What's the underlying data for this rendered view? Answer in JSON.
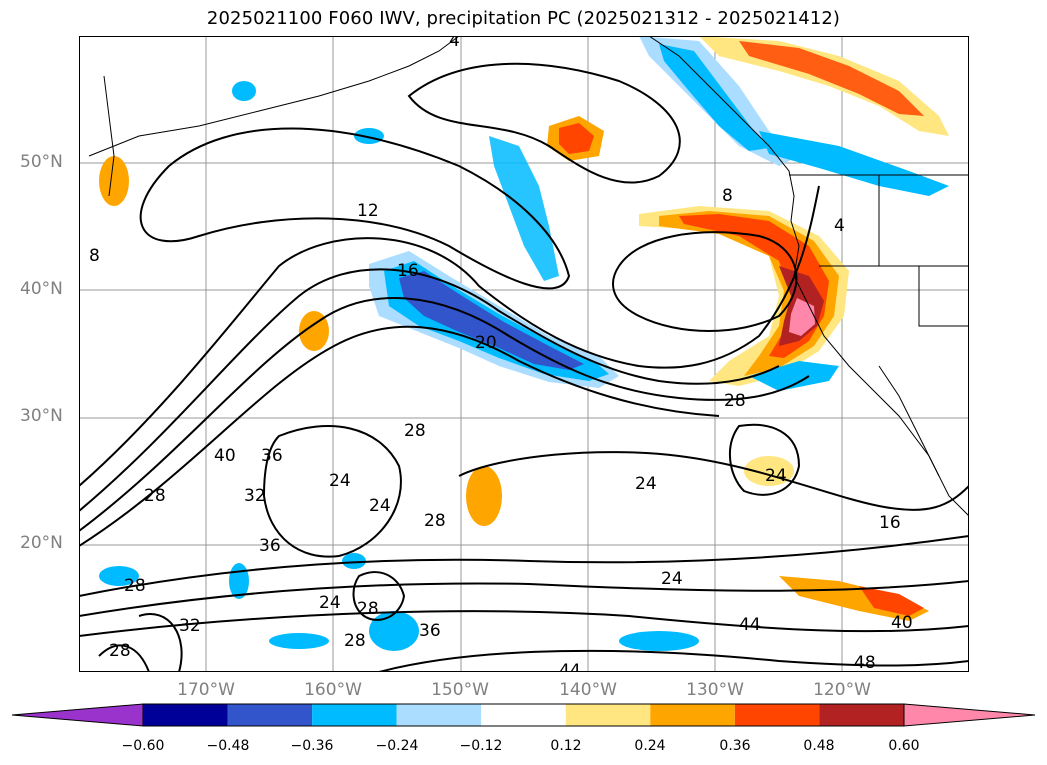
{
  "title": "2025021100 F060 IWV, precipitation PC (2025021312 - 2025021412)",
  "axes": {
    "lat_ticks": [
      "50°N",
      "40°N",
      "30°N",
      "20°N"
    ],
    "lon_ticks": [
      "170°W",
      "160°W",
      "150°W",
      "140°W",
      "130°W",
      "120°W"
    ]
  },
  "colorbar": {
    "labels": [
      "−0.60",
      "−0.48",
      "−0.36",
      "−0.24",
      "−0.12",
      "0.12",
      "0.24",
      "0.36",
      "0.48",
      "0.60"
    ],
    "colors": [
      "#9933cc",
      "#000099",
      "#3355cc",
      "#00bbff",
      "#aaddff",
      "#ffffff",
      "#ffe680",
      "#ffa500",
      "#ff4500",
      "#b22222",
      "#ff88aa"
    ]
  },
  "contour_labels": [
    "4",
    "8",
    "8",
    "4",
    "12",
    "16",
    "20",
    "28",
    "40",
    "36",
    "32",
    "28",
    "24",
    "24",
    "28",
    "28",
    "36",
    "28",
    "24",
    "28",
    "32",
    "28",
    "36",
    "24",
    "24",
    "24",
    "28",
    "16",
    "44",
    "40",
    "44",
    "48"
  ]
}
